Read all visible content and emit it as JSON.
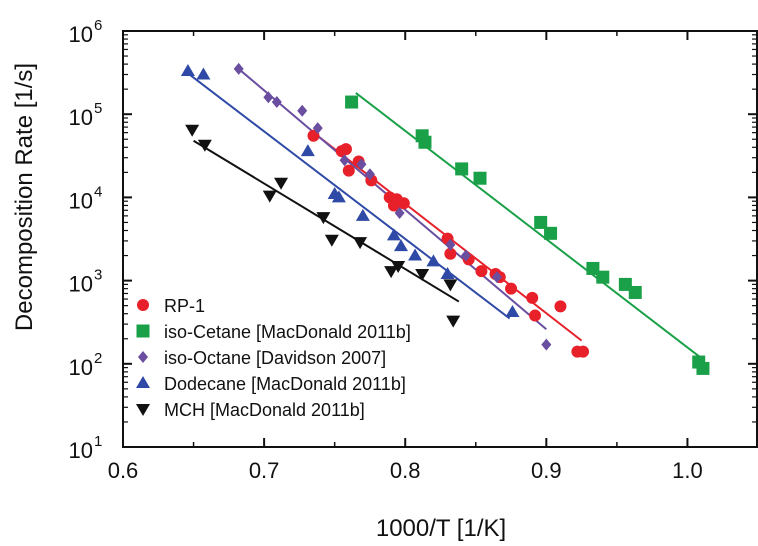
{
  "chart_data": {
    "type": "scatter",
    "title": "",
    "xlabel": "1000/T [1/K]",
    "ylabel": "Decomposition Rate [1/s]",
    "xlim": [
      0.6,
      1.05
    ],
    "ylim": [
      10,
      1000000
    ],
    "yscale": "log",
    "x_ticks": [
      0.6,
      0.7,
      0.8,
      0.9,
      1.0
    ],
    "x_tick_labels": [
      "0.6",
      "0.7",
      "0.8",
      "0.9",
      "1.0"
    ],
    "y_ticks": [
      10,
      100,
      1000,
      10000,
      100000,
      1000000
    ],
    "y_tick_labels": [
      {
        "base": "10",
        "exp": "1"
      },
      {
        "base": "10",
        "exp": "2"
      },
      {
        "base": "10",
        "exp": "3"
      },
      {
        "base": "10",
        "exp": "4"
      },
      {
        "base": "10",
        "exp": "5"
      },
      {
        "base": "10",
        "exp": "6"
      }
    ],
    "grid": false,
    "legend_position": "bottom-left",
    "series": [
      {
        "name": "RP-1",
        "color": "#e8202a",
        "marker": "circle",
        "points": [
          [
            0.735,
            55000
          ],
          [
            0.755,
            36000
          ],
          [
            0.758,
            38000
          ],
          [
            0.76,
            21000
          ],
          [
            0.767,
            27000
          ],
          [
            0.776,
            16000
          ],
          [
            0.789,
            10000
          ],
          [
            0.792,
            8000
          ],
          [
            0.794,
            9500
          ],
          [
            0.799,
            8500
          ],
          [
            0.83,
            3200
          ],
          [
            0.832,
            2100
          ],
          [
            0.845,
            1800
          ],
          [
            0.854,
            1300
          ],
          [
            0.864,
            1200
          ],
          [
            0.867,
            1100
          ],
          [
            0.875,
            800
          ],
          [
            0.89,
            620
          ],
          [
            0.892,
            380
          ],
          [
            0.91,
            490
          ],
          [
            0.922,
            140
          ],
          [
            0.926,
            140
          ]
        ],
        "fit": [
          [
            0.735,
            60000
          ],
          [
            0.925,
            190
          ]
        ]
      },
      {
        "name": "iso-Cetane [MacDonald 2011b]",
        "color": "#1aa048",
        "marker": "square",
        "points": [
          [
            0.762,
            140000
          ],
          [
            0.812,
            55000
          ],
          [
            0.814,
            46000
          ],
          [
            0.84,
            22000
          ],
          [
            0.853,
            17000
          ],
          [
            0.896,
            5000
          ],
          [
            0.903,
            3700
          ],
          [
            0.933,
            1400
          ],
          [
            0.94,
            1100
          ],
          [
            0.956,
            900
          ],
          [
            0.963,
            720
          ],
          [
            1.008,
            105
          ],
          [
            1.011,
            88
          ]
        ],
        "fit": [
          [
            0.765,
            180000
          ],
          [
            1.009,
            120
          ]
        ]
      },
      {
        "name": "iso-Octane [Davidson 2007]",
        "color": "#6a4ea0",
        "marker": "diamond",
        "points": [
          [
            0.682,
            350000
          ],
          [
            0.703,
            160000
          ],
          [
            0.709,
            140000
          ],
          [
            0.727,
            110000
          ],
          [
            0.738,
            68000
          ],
          [
            0.757,
            28000
          ],
          [
            0.769,
            25000
          ],
          [
            0.775,
            19000
          ],
          [
            0.796,
            6500
          ],
          [
            0.832,
            2700
          ],
          [
            0.843,
            2000
          ],
          [
            0.865,
            1100
          ],
          [
            0.9,
            170
          ]
        ],
        "fit": [
          [
            0.682,
            350000
          ],
          [
            0.9,
            260
          ]
        ]
      },
      {
        "name": "Dodecane [MacDonald 2011b]",
        "color": "#2f4aa6",
        "marker": "triangle-up",
        "points": [
          [
            0.646,
            330000
          ],
          [
            0.657,
            300000
          ],
          [
            0.731,
            36000
          ],
          [
            0.75,
            11000
          ],
          [
            0.753,
            10000
          ],
          [
            0.77,
            6000
          ],
          [
            0.792,
            3500
          ],
          [
            0.797,
            2600
          ],
          [
            0.807,
            2000
          ],
          [
            0.82,
            1700
          ],
          [
            0.83,
            1200
          ],
          [
            0.876,
            420
          ]
        ],
        "fit": [
          [
            0.646,
            310000
          ],
          [
            0.874,
            350
          ]
        ]
      },
      {
        "name": "MCH [MacDonald 2011b]",
        "color": "#111111",
        "marker": "triangle-down",
        "points": [
          [
            0.649,
            65000
          ],
          [
            0.658,
            43000
          ],
          [
            0.704,
            10500
          ],
          [
            0.712,
            15000
          ],
          [
            0.742,
            5800
          ],
          [
            0.748,
            3100
          ],
          [
            0.768,
            2900
          ],
          [
            0.79,
            1300
          ],
          [
            0.795,
            1500
          ],
          [
            0.812,
            1200
          ],
          [
            0.832,
            900
          ],
          [
            0.834,
            330
          ]
        ],
        "fit": [
          [
            0.65,
            48000
          ],
          [
            0.838,
            560
          ]
        ]
      }
    ]
  }
}
